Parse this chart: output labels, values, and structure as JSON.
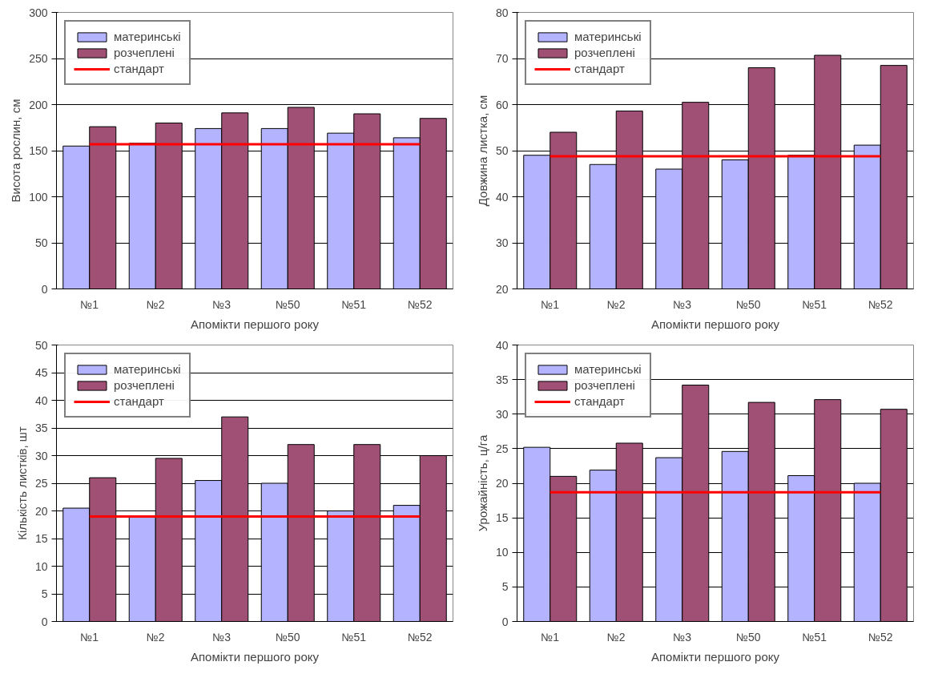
{
  "chart_data": [
    {
      "type": "bar",
      "ylabel": "Висота рослин, см",
      "xlabel": "Апомікти першого року",
      "categories": [
        "№1",
        "№2",
        "№3",
        "№50",
        "№51",
        "№52"
      ],
      "ylim": [
        0,
        300
      ],
      "yticks": [
        0,
        50,
        100,
        150,
        200,
        250,
        300
      ],
      "grid": "y",
      "legend": "top left",
      "series": [
        {
          "name": "материнські",
          "color": "#b3b3ff",
          "values": [
            155,
            158,
            174,
            174,
            169,
            164
          ]
        },
        {
          "name": "розчеплені",
          "color": "#a05075",
          "values": [
            176,
            180,
            191,
            197,
            190,
            185
          ]
        },
        {
          "name": "стандарт",
          "type": "line",
          "color": "#ff0000",
          "values": [
            157,
            157,
            157,
            157,
            157,
            157
          ]
        }
      ]
    },
    {
      "type": "bar",
      "ylabel": "Довжина листка, см",
      "xlabel": "Апомікти першого року",
      "categories": [
        "№1",
        "№2",
        "№3",
        "№50",
        "№51",
        "№52"
      ],
      "ylim": [
        20,
        80
      ],
      "yticks": [
        20,
        30,
        40,
        50,
        60,
        70,
        80
      ],
      "grid": "y",
      "legend": "top left",
      "series": [
        {
          "name": "материнські",
          "color": "#b3b3ff",
          "values": [
            49,
            47,
            46,
            48,
            49,
            51.2
          ]
        },
        {
          "name": "розчеплені",
          "color": "#a05075",
          "values": [
            54,
            58.6,
            60.5,
            68,
            70.7,
            68.5
          ]
        },
        {
          "name": "стандарт",
          "type": "line",
          "color": "#ff0000",
          "values": [
            48.8,
            48.8,
            48.8,
            48.8,
            48.8,
            48.8
          ]
        }
      ]
    },
    {
      "type": "bar",
      "ylabel": "Кількість листків, шт",
      "xlabel": "Апомікти першого року",
      "categories": [
        "№1",
        "№2",
        "№3",
        "№50",
        "№51",
        "№52"
      ],
      "ylim": [
        0,
        50
      ],
      "yticks": [
        0,
        5,
        10,
        15,
        20,
        25,
        30,
        35,
        40,
        45,
        50
      ],
      "grid": "y",
      "legend": "top left",
      "series": [
        {
          "name": "материнські",
          "color": "#b3b3ff",
          "values": [
            20.5,
            19,
            25.5,
            25,
            20,
            21
          ]
        },
        {
          "name": "розчеплені",
          "color": "#a05075",
          "values": [
            26,
            29.5,
            37,
            32,
            32,
            30
          ]
        },
        {
          "name": "стандарт",
          "type": "line",
          "color": "#ff0000",
          "values": [
            19,
            19,
            19,
            19,
            19,
            19
          ]
        }
      ]
    },
    {
      "type": "bar",
      "ylabel": "Урожайність, ц/га",
      "xlabel": "Апомікти першого року",
      "categories": [
        "№1",
        "№2",
        "№3",
        "№50",
        "№51",
        "№52"
      ],
      "ylim": [
        0,
        40
      ],
      "yticks": [
        0,
        5,
        10,
        15,
        20,
        25,
        30,
        35,
        40
      ],
      "grid": "y",
      "legend": "top left",
      "series": [
        {
          "name": "материнські",
          "color": "#b3b3ff",
          "values": [
            25.2,
            21.9,
            23.7,
            24.6,
            21.1,
            20
          ]
        },
        {
          "name": "розчеплені",
          "color": "#a05075",
          "values": [
            21,
            25.8,
            34.2,
            31.7,
            32.1,
            30.7
          ]
        },
        {
          "name": "стандарт",
          "type": "line",
          "color": "#ff0000",
          "values": [
            18.7,
            18.7,
            18.7,
            18.7,
            18.7,
            18.7
          ]
        }
      ]
    }
  ]
}
